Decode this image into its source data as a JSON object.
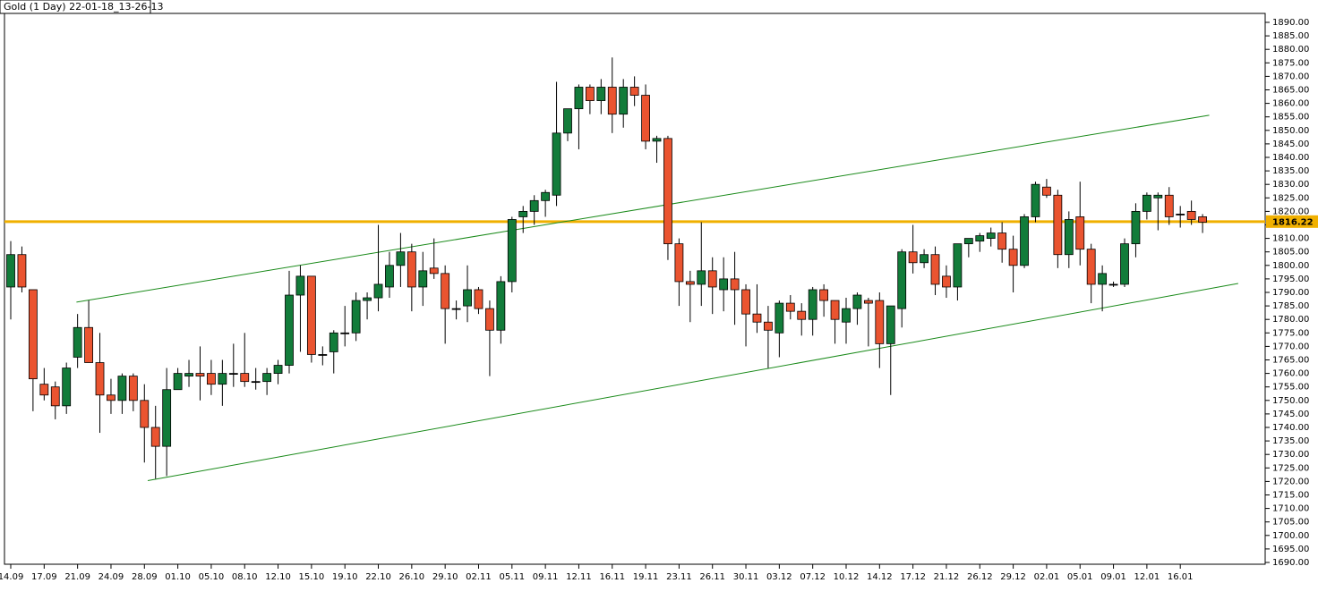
{
  "chart_data": {
    "type": "candlestick",
    "title": "Gold (1 Day) 22-01-18_13-26-13",
    "categories": [
      "14.09",
      null,
      null,
      "17.09",
      null,
      null,
      "21.09",
      null,
      null,
      "24.09",
      null,
      null,
      "28.09",
      null,
      null,
      "01.10",
      null,
      null,
      "05.10",
      null,
      null,
      "08.10",
      null,
      null,
      "12.10",
      null,
      null,
      "15.10",
      null,
      null,
      "19.10",
      null,
      null,
      "22.10",
      null,
      null,
      "26.10",
      null,
      null,
      "29.10",
      null,
      null,
      "02.11",
      null,
      null,
      "05.11",
      null,
      null,
      "09.11",
      null,
      null,
      "12.11",
      null,
      null,
      "16.11",
      null,
      null,
      "19.11",
      null,
      null,
      "23.11",
      null,
      null,
      "26.11",
      null,
      null,
      "30.11",
      null,
      null,
      "03.12",
      null,
      null,
      "07.12",
      null,
      null,
      "10.12",
      null,
      null,
      "14.12",
      null,
      null,
      "17.12",
      null,
      null,
      "21.12",
      null,
      null,
      "26.12",
      null,
      null,
      "29.12",
      null,
      null,
      "02.01",
      null,
      null,
      "05.01",
      null,
      null,
      "09.01",
      null,
      null,
      "12.01",
      null,
      null,
      "16.01",
      null,
      null
    ],
    "open": [
      1792,
      1804,
      1791,
      1756,
      1755,
      1748,
      1766,
      1777,
      1764,
      1752,
      1750,
      1759,
      1750,
      1740,
      1733,
      1754,
      1759,
      1760,
      1760,
      1756,
      1760,
      1760,
      1757,
      1757,
      1760,
      1763,
      1789,
      1796,
      1767,
      1768,
      1775,
      1775,
      1787,
      1788,
      1792,
      1800,
      1805,
      1792,
      1799,
      1797,
      1784,
      1785,
      1791,
      1784,
      1776,
      1794,
      1818,
      1820,
      1824,
      1826,
      1849,
      1858,
      1866,
      1861,
      1866,
      1856,
      1866,
      1863,
      1846,
      1847,
      1808,
      1794,
      1793,
      1798,
      1791,
      1795,
      1791,
      1782,
      1779,
      1775,
      1786,
      1783,
      1780,
      1791,
      1787,
      1779,
      1784,
      1787,
      1787,
      1771,
      1784,
      1805,
      1801,
      1804,
      1796,
      1792,
      1808,
      1809,
      1810,
      1812,
      1806,
      1800,
      1818,
      1829,
      1826,
      1804,
      1818,
      1806,
      1793,
      1793,
      1793,
      1808,
      1820,
      1825,
      1826,
      1819,
      1820,
      1818
    ],
    "high": [
      1809,
      1807,
      1791,
      1762,
      1757,
      1764,
      1782,
      1787,
      1775,
      1758,
      1760,
      1760,
      1756,
      1748,
      1762,
      1762,
      1765,
      1770,
      1765,
      1765,
      1771,
      1775,
      1762,
      1762,
      1765,
      1798,
      1800,
      1796,
      1770,
      1776,
      1785,
      1790,
      1790,
      1815,
      1805,
      1812,
      1808,
      1805,
      1810,
      1800,
      1787,
      1800,
      1792,
      1787,
      1796,
      1818,
      1822,
      1826,
      1828,
      1868,
      1858,
      1867,
      1867,
      1869,
      1877,
      1869,
      1870,
      1867,
      1848,
      1848,
      1810,
      1798,
      1816,
      1803,
      1803,
      1805,
      1793,
      1793,
      1785,
      1787,
      1789,
      1786,
      1792,
      1793,
      1787,
      1788,
      1790,
      1788,
      1790,
      1785,
      1806,
      1815,
      1806,
      1807,
      1800,
      1808,
      1810,
      1812,
      1814,
      1816,
      1811,
      1819,
      1831,
      1832,
      1828,
      1820,
      1831,
      1808,
      1800,
      1794,
      1810,
      1823,
      1827,
      1827,
      1829,
      1822,
      1824,
      1819
    ],
    "low": [
      1780,
      1790,
      1746,
      1750,
      1743,
      1745,
      1762,
      1766,
      1738,
      1745,
      1745,
      1746,
      1727,
      1721,
      1722,
      1754,
      1755,
      1750,
      1752,
      1748,
      1755,
      1755,
      1754,
      1752,
      1756,
      1760,
      1768,
      1764,
      1763,
      1760,
      1770,
      1772,
      1780,
      1783,
      1788,
      1792,
      1783,
      1785,
      1795,
      1771,
      1780,
      1779,
      1782,
      1759,
      1771,
      1790,
      1812,
      1815,
      1818,
      1822,
      1846,
      1843,
      1856,
      1856,
      1849,
      1851,
      1859,
      1843,
      1838,
      1802,
      1785,
      1779,
      1785,
      1782,
      1783,
      1778,
      1770,
      1775,
      1762,
      1766,
      1780,
      1774,
      1774,
      1781,
      1771,
      1771,
      1778,
      1770,
      1762,
      1752,
      1777,
      1797,
      1799,
      1789,
      1788,
      1787,
      1803,
      1805,
      1807,
      1801,
      1790,
      1799,
      1816,
      1825,
      1799,
      1799,
      1800,
      1786,
      1783,
      1792,
      1792,
      1803,
      1817,
      1813,
      1815,
      1814,
      1815,
      1812
    ],
    "close": [
      1804,
      1792,
      1758,
      1752,
      1748,
      1762,
      1777,
      1764,
      1752,
      1750,
      1759,
      1750,
      1740,
      1733,
      1754,
      1760,
      1760,
      1759,
      1756,
      1760,
      1760,
      1757,
      1757,
      1760,
      1763,
      1789,
      1796,
      1767,
      1767,
      1775,
      1775,
      1787,
      1788,
      1793,
      1800,
      1805,
      1792,
      1798,
      1797,
      1784,
      1784,
      1791,
      1784,
      1776,
      1794,
      1817,
      1820,
      1824,
      1827,
      1849,
      1858,
      1866,
      1861,
      1866,
      1856,
      1866,
      1863,
      1846,
      1847,
      1808,
      1794,
      1793,
      1798,
      1792,
      1795,
      1791,
      1782,
      1779,
      1776,
      1786,
      1783,
      1780,
      1791,
      1787,
      1780,
      1784,
      1789,
      1786,
      1771,
      1785,
      1805,
      1801,
      1804,
      1793,
      1792,
      1808,
      1810,
      1811,
      1812,
      1806,
      1800,
      1818,
      1830,
      1826,
      1804,
      1817,
      1806,
      1793,
      1797,
      1793,
      1808,
      1820,
      1826,
      1826,
      1818,
      1819,
      1817,
      1816
    ],
    "up_color": "#127c3a",
    "down_color": "#ea5430",
    "ylim": [
      1690,
      1890
    ],
    "yticks": [
      {
        "value": 1690,
        "label": "1690.00"
      },
      {
        "value": 1695,
        "label": "1695.00"
      },
      {
        "value": 1700,
        "label": "1700.00"
      },
      {
        "value": 1705,
        "label": "1705.00"
      },
      {
        "value": 1710,
        "label": "1710.00"
      },
      {
        "value": 1715,
        "label": "1715.00"
      },
      {
        "value": 1720,
        "label": "1720.00"
      },
      {
        "value": 1725,
        "label": "1725.00"
      },
      {
        "value": 1730,
        "label": "1730.00"
      },
      {
        "value": 1735,
        "label": "1735.00"
      },
      {
        "value": 1740,
        "label": "1740.00"
      },
      {
        "value": 1745,
        "label": "1745.00"
      },
      {
        "value": 1750,
        "label": "1750.00"
      },
      {
        "value": 1755,
        "label": "1755.00"
      },
      {
        "value": 1760,
        "label": "1760.00"
      },
      {
        "value": 1765,
        "label": "1765.00"
      },
      {
        "value": 1770,
        "label": "1770.00"
      },
      {
        "value": 1775,
        "label": "1775.00"
      },
      {
        "value": 1780,
        "label": "1780.00"
      },
      {
        "value": 1785,
        "label": "1785.00"
      },
      {
        "value": 1790,
        "label": "1790.00"
      },
      {
        "value": 1795,
        "label": "1795.00"
      },
      {
        "value": 1800,
        "label": "1800.00"
      },
      {
        "value": 1805,
        "label": "1805.00"
      },
      {
        "value": 1810,
        "label": "1810.00"
      },
      {
        "value": 1815,
        "label": "1815.00"
      },
      {
        "value": 1820,
        "label": "1820.00"
      },
      {
        "value": 1825,
        "label": "1825.00"
      },
      {
        "value": 1830,
        "label": "1830.00"
      },
      {
        "value": 1835,
        "label": "1835.00"
      },
      {
        "value": 1840,
        "label": "1840.00"
      },
      {
        "value": 1845,
        "label": "1845.00"
      },
      {
        "value": 1850,
        "label": "1850.00"
      },
      {
        "value": 1855,
        "label": "1855.00"
      },
      {
        "value": 1860,
        "label": "1860.00"
      },
      {
        "value": 1865,
        "label": "1865.00"
      },
      {
        "value": 1870,
        "label": "1870.00"
      },
      {
        "value": 1875,
        "label": "1875.00"
      },
      {
        "value": 1880,
        "label": "1880.00"
      },
      {
        "value": 1885,
        "label": "1885.00"
      },
      {
        "value": 1890,
        "label": "1890.00"
      }
    ],
    "current_price": 1816.22,
    "current_price_color": "#f0b000",
    "trendlines": [
      {
        "color": "#1a8a1a",
        "x": [
          5.9,
          107.6
        ],
        "y": [
          1786.4,
          1855.6
        ]
      },
      {
        "color": "#1a8a1a",
        "x": [
          12.3,
          110.2
        ],
        "y": [
          1720.3,
          1793.3
        ]
      }
    ]
  }
}
